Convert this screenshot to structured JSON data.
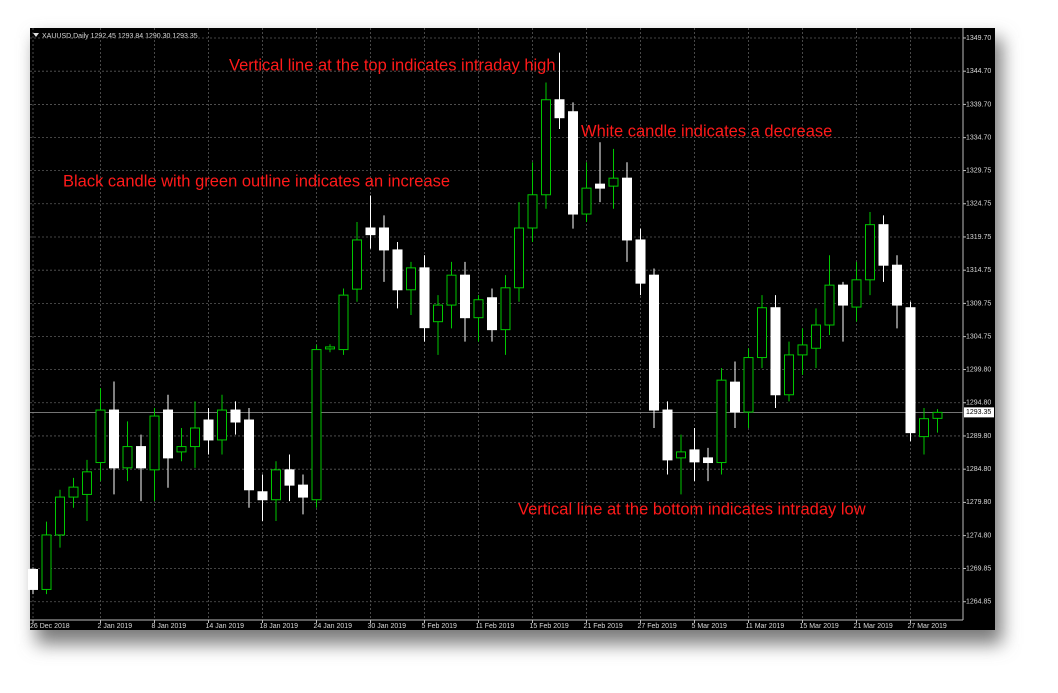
{
  "chart_data": {
    "type": "candlestick",
    "header": "XAUUSD,Daily  1292.45 1293.84 1290.30 1293.35",
    "annotations": [
      "Vertical line at the top indicates intraday high",
      "White candle indicates a decrease",
      "Black candle with green outline indicates an increase",
      "Vertical line at the bottom indicates intraday low"
    ],
    "annotation_color": "#ff1a1a",
    "background": "#000000",
    "up_color": "#000000",
    "up_outline": "#00c800",
    "down_color": "#ffffff",
    "down_outline": "#ffffff",
    "grid": true,
    "grid_color": "#5a5a5a",
    "categories": [
      "26 Dec 2018",
      null,
      null,
      null,
      null,
      "2 Jan 2019",
      null,
      null,
      null,
      "8 Jan 2019",
      null,
      null,
      null,
      "14 Jan 2019",
      null,
      null,
      null,
      "18 Jan 2019",
      null,
      null,
      null,
      "24 Jan 2019",
      null,
      null,
      null,
      "30 Jan 2019",
      null,
      null,
      null,
      "5 Feb 2019",
      null,
      null,
      null,
      "11 Feb 2019",
      null,
      null,
      null,
      "15 Feb 2019",
      null,
      null,
      null,
      "21 Feb 2019",
      null,
      null,
      null,
      "27 Feb 2019",
      null,
      null,
      null,
      "5 Mar 2019",
      null,
      null,
      null,
      "11 Mar 2019",
      null,
      null,
      null,
      "15 Mar 2019",
      null,
      null,
      null,
      "21 Mar 2019",
      null,
      null,
      null,
      "27 Mar 2019",
      null,
      null
    ],
    "open": [
      1269.7,
      1266.7,
      1274.9,
      1280.6,
      1281,
      1285.8,
      1293.7,
      1285,
      1288.2,
      1284.7,
      1293.7,
      1287.4,
      1288.2,
      1292.2,
      1289.2,
      1293.7,
      1292.2,
      1281.4,
      1280.2,
      1284.7,
      1282.4,
      1280.2,
      1302.9,
      1302.8,
      1311.9,
      1321.1,
      1321.1,
      1317.8,
      1311.8,
      1315.1,
      1307,
      1309.5,
      1314,
      1307.6,
      1310.6,
      1305.8,
      1312.1,
      1321.1,
      1326.1,
      1340.4,
      1338.6,
      1323.2,
      1327.7,
      1327.4,
      1328.6,
      1319.3,
      1314,
      1293.7,
      1286.5,
      1287.7,
      1286.5,
      1285.8,
      1297.9,
      1293.4,
      1301.6,
      1309.1,
      1296,
      1302,
      1303,
      1306.5,
      1312.5,
      1309.2,
      1313.3,
      1321.6,
      1315.5,
      1309.1,
      1289.7,
      1292.45
    ],
    "high": [
      1270,
      1276.9,
      1281.7,
      1283.5,
      1286.2,
      1297,
      1298,
      1292,
      1290,
      1294,
      1296,
      1291,
      1295,
      1294,
      1296,
      1295,
      1294,
      1284,
      1286,
      1287,
      1284,
      1303.5,
      1303.6,
      1312,
      1322,
      1326,
      1323,
      1319,
      1316,
      1317,
      1311,
      1316,
      1316,
      1311,
      1312,
      1314,
      1325,
      1331,
      1343,
      1347.5,
      1340,
      1331,
      1334,
      1333,
      1331,
      1321,
      1315,
      1295,
      1290,
      1291,
      1288,
      1300,
      1301,
      1303,
      1311,
      1311,
      1304,
      1306,
      1309,
      1317,
      1313,
      1316,
      1323.5,
      1323,
      1317,
      1310,
      1294,
      1293.84
    ],
    "low": [
      1266,
      1266,
      1273,
      1279,
      1277,
      1283,
      1281,
      1283,
      1280,
      1280,
      1282,
      1286,
      1285,
      1287,
      1287,
      1290,
      1279,
      1277,
      1277,
      1280,
      1278,
      1279,
      1302.4,
      1302,
      1310,
      1318,
      1313,
      1309,
      1308,
      1304,
      1302,
      1306,
      1304,
      1304,
      1304,
      1302,
      1310,
      1319,
      1324,
      1336,
      1321,
      1322,
      1325,
      1324,
      1316,
      1311,
      1291,
      1284,
      1281,
      1283,
      1283,
      1284,
      1291,
      1291,
      1300,
      1294,
      1295,
      1299,
      1300,
      1305,
      1304,
      1307,
      1311,
      1313,
      1306,
      1289,
      1287,
      1290.3
    ],
    "close": [
      1266.7,
      1274.9,
      1280.6,
      1282.1,
      1284.4,
      1293.7,
      1285,
      1288.2,
      1285,
      1292.8,
      1286.5,
      1288.2,
      1291,
      1289.2,
      1293.7,
      1291.9,
      1281.7,
      1280.2,
      1284.7,
      1282.4,
      1280.6,
      1302.8,
      1303.2,
      1311,
      1319.3,
      1320.1,
      1317.8,
      1311.8,
      1315.1,
      1306.1,
      1309.5,
      1314,
      1307.6,
      1310.3,
      1305.8,
      1312.1,
      1321.1,
      1326.1,
      1340.4,
      1337.7,
      1323.2,
      1327.1,
      1327.1,
      1328.6,
      1319.3,
      1312.8,
      1293.7,
      1286.2,
      1287.4,
      1285.9,
      1285.8,
      1298.2,
      1293.4,
      1301.6,
      1309.1,
      1296,
      1302,
      1303.5,
      1306.5,
      1312.5,
      1309.5,
      1313.3,
      1321.6,
      1315.5,
      1309.5,
      1290.3,
      1292.4,
      1293.35
    ],
    "current_price": {
      "value": 1293.35,
      "label": "1293.35"
    },
    "ylim": [
      1262.1,
      1350.9
    ],
    "yticks": [
      {
        "value": 1349.7,
        "label": "1349.70"
      },
      {
        "value": 1344.7,
        "label": "1344.70"
      },
      {
        "value": 1339.7,
        "label": "1339.70"
      },
      {
        "value": 1334.7,
        "label": "1334.70"
      },
      {
        "value": 1329.75,
        "label": "1329.75"
      },
      {
        "value": 1324.75,
        "label": "1324.75"
      },
      {
        "value": 1319.75,
        "label": "1319.75"
      },
      {
        "value": 1314.75,
        "label": "1314.75"
      },
      {
        "value": 1309.75,
        "label": "1309.75"
      },
      {
        "value": 1304.75,
        "label": "1304.75"
      },
      {
        "value": 1299.8,
        "label": "1299.80"
      },
      {
        "value": 1294.8,
        "label": "1294.80"
      },
      {
        "value": 1289.8,
        "label": "1289.80"
      },
      {
        "value": 1284.8,
        "label": "1284.80"
      },
      {
        "value": 1279.8,
        "label": "1279.80"
      },
      {
        "value": 1274.8,
        "label": "1274.80"
      },
      {
        "value": 1269.85,
        "label": "1269.85"
      },
      {
        "value": 1264.85,
        "label": "1264.85"
      }
    ]
  }
}
